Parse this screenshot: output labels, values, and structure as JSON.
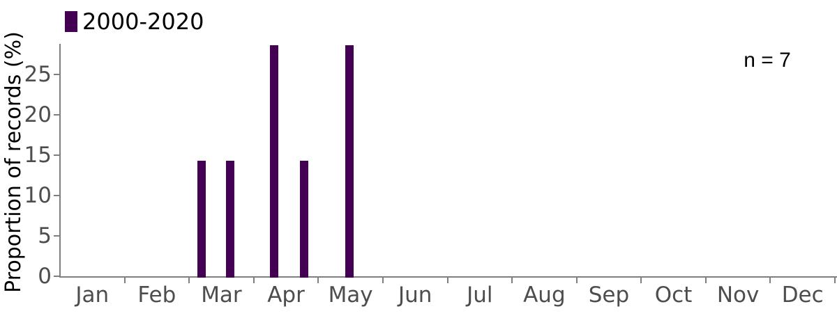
{
  "chart_data": {
    "type": "bar",
    "title": "",
    "xlabel": "",
    "ylabel": "Proportion of records (%)",
    "annotation": "n = 7",
    "x_categories": [
      "Jan",
      "Feb",
      "Mar",
      "Apr",
      "May",
      "Jun",
      "Jul",
      "Aug",
      "Sep",
      "Oct",
      "Nov",
      "Dec"
    ],
    "yticks": [
      0,
      5,
      10,
      15,
      20,
      25
    ],
    "ylim": [
      0,
      28.8
    ],
    "grid": false,
    "legend_position": "top-left",
    "legend": [
      {
        "name": "2000-2020",
        "color": "#440154"
      }
    ],
    "series": [
      {
        "name": "2000-2020",
        "color": "#440154",
        "bars": [
          {
            "month": "Mar",
            "x_month": 2.19,
            "value": 14.3
          },
          {
            "month": "Mar",
            "x_month": 2.64,
            "value": 14.3
          },
          {
            "month": "Apr",
            "x_month": 3.32,
            "value": 28.6
          },
          {
            "month": "Apr",
            "x_month": 3.78,
            "value": 14.3
          },
          {
            "month": "May",
            "x_month": 4.48,
            "value": 28.6
          }
        ]
      }
    ]
  },
  "colors": {
    "bar": "#440154",
    "axis": "#7f7f7f",
    "tick_label": "#4d4d4d",
    "text": "#000000"
  }
}
